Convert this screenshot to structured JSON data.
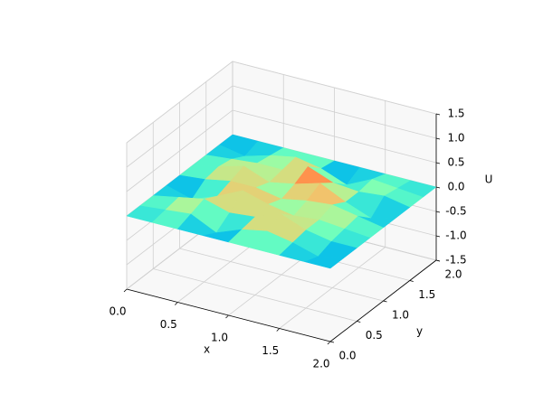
{
  "chart_data": {
    "type": "surface",
    "colormap": "rainbow",
    "x": [
      0,
      0.25,
      0.5,
      0.75,
      1,
      1.25,
      1.5,
      1.75,
      2
    ],
    "y": [
      0,
      0.25,
      0.5,
      0.75,
      1,
      1.25,
      1.5,
      1.75,
      2
    ],
    "z": [
      [
        0,
        0,
        0,
        0,
        0,
        0,
        0,
        0,
        0
      ],
      [
        0,
        0.05,
        0.1,
        -0.15,
        0.05,
        0.15,
        0.05,
        -0.1,
        0
      ],
      [
        0,
        0.1,
        0.2,
        0.05,
        0.1,
        0.3,
        0.1,
        0.0,
        0
      ],
      [
        0,
        -0.15,
        0.05,
        0.3,
        0.15,
        0.05,
        0.1,
        0.05,
        0
      ],
      [
        0,
        0.05,
        0.15,
        0.15,
        0.05,
        0.15,
        0.2,
        0.1,
        0
      ],
      [
        0,
        0.1,
        0.25,
        0.05,
        0.15,
        0.3,
        0.05,
        -0.15,
        0
      ],
      [
        0,
        0.05,
        0.1,
        0.1,
        0.3,
        0.1,
        0.05,
        0.1,
        0
      ],
      [
        0,
        -0.1,
        0.05,
        0.15,
        0.05,
        -0.15,
        0.1,
        0.05,
        0
      ],
      [
        0,
        0,
        0,
        0,
        0,
        0,
        0,
        0,
        0
      ]
    ],
    "x_label": "x",
    "y_label": "y",
    "z_label": "U",
    "xlim": [
      0,
      2
    ],
    "ylim": [
      0,
      2
    ],
    "zlim": [
      -1.5,
      1.5
    ],
    "xticks": [
      {
        "value": 0,
        "label": "0.0"
      },
      {
        "value": 0.5,
        "label": "0.5"
      },
      {
        "value": 1,
        "label": "1.0"
      },
      {
        "value": 1.5,
        "label": "1.5"
      },
      {
        "value": 2,
        "label": "2.0"
      }
    ],
    "yticks": [
      {
        "value": 0,
        "label": "0.0"
      },
      {
        "value": 0.5,
        "label": "0.5"
      },
      {
        "value": 1,
        "label": "1.0"
      },
      {
        "value": 1.5,
        "label": "1.5"
      },
      {
        "value": 2,
        "label": "2.0"
      }
    ],
    "zticks": [
      {
        "value": -1.5,
        "label": "-1.5"
      },
      {
        "value": -1,
        "label": "-1.0"
      },
      {
        "value": -0.5,
        "label": "-0.5"
      },
      {
        "value": 0,
        "label": "0.0"
      },
      {
        "value": 0.5,
        "label": "0.5"
      },
      {
        "value": 1,
        "label": "1.0"
      },
      {
        "value": 1.5,
        "label": "1.5"
      }
    ],
    "grid": true
  }
}
